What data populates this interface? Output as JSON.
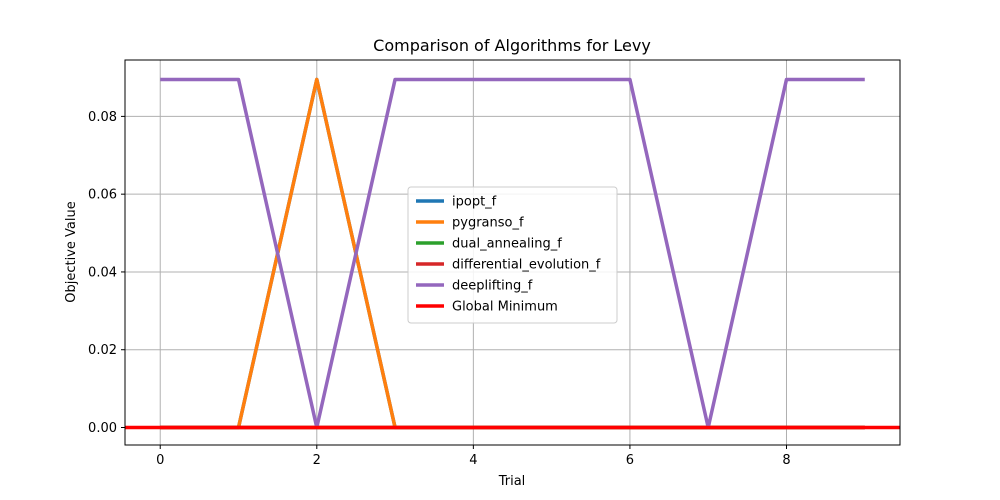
{
  "chart_data": {
    "type": "line",
    "title": "Comparison of Algorithms for Levy",
    "xlabel": "Trial",
    "ylabel": "Objective Value",
    "x": [
      0,
      1,
      2,
      3,
      4,
      5,
      6,
      7,
      8,
      9
    ],
    "xlim": [
      -0.45,
      9.45
    ],
    "ylim": [
      -0.0045,
      0.0945
    ],
    "xticks": [
      0,
      2,
      4,
      6,
      8
    ],
    "yticks": [
      0.0,
      0.02,
      0.04,
      0.06,
      0.08
    ],
    "xtick_labels": [
      "0",
      "2",
      "4",
      "6",
      "8"
    ],
    "ytick_labels": [
      "0.00",
      "0.02",
      "0.04",
      "0.06",
      "0.08"
    ],
    "grid": true,
    "legend_position": "center",
    "series": [
      {
        "name": "ipopt_f",
        "color": "#1f77b4",
        "values": [
          0,
          0,
          0.0895,
          0,
          0,
          0,
          0,
          0,
          0,
          0
        ]
      },
      {
        "name": "pygranso_f",
        "color": "#ff7f0e",
        "values": [
          0,
          0,
          0.0895,
          0,
          0,
          0,
          0,
          0,
          0,
          0
        ]
      },
      {
        "name": "dual_annealing_f",
        "color": "#2ca02c",
        "values": [
          0,
          0,
          0,
          0,
          0,
          0,
          0,
          0,
          0,
          0
        ]
      },
      {
        "name": "differential_evolution_f",
        "color": "#d62728",
        "values": [
          0,
          0,
          0,
          0,
          0,
          0,
          0,
          0,
          0,
          0
        ]
      },
      {
        "name": "deeplifting_f",
        "color": "#9467bd",
        "values": [
          0.0895,
          0.0895,
          0,
          0.0895,
          0.0895,
          0.0895,
          0.0895,
          0,
          0.0895,
          0.0895
        ]
      }
    ],
    "hlines": [
      {
        "name": "Global Minimum",
        "color": "#ff0000",
        "y": 0
      }
    ]
  }
}
